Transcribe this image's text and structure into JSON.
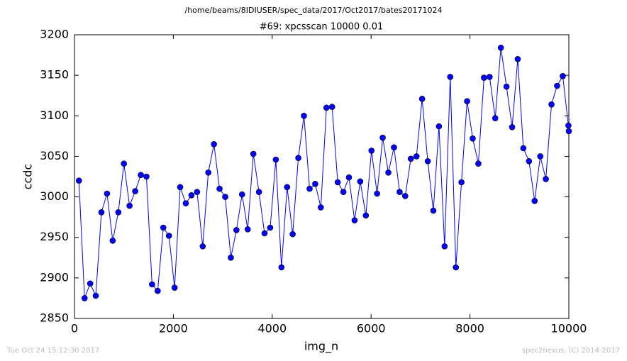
{
  "chart_data": {
    "type": "line",
    "suptitle": "/home/beams/8IDIUSER/spec_data/2017/Oct2017/bates20171024",
    "title": "#69: xpcsscan 10000 0.01",
    "xlabel": "img_n",
    "ylabel": "ccdc",
    "annotations": [
      "Tue Oct 24 15:12:30 2017",
      "spec2nexus, (C) 2014-2017"
    ],
    "color": "#0000ff",
    "xlim": [
      0,
      10000
    ],
    "xticks": [
      0,
      2000,
      4000,
      6000,
      8000,
      10000
    ],
    "ylim": [
      2850,
      3200
    ],
    "yticks": [
      2850,
      2900,
      2950,
      3000,
      3050,
      3100,
      3150,
      3200
    ],
    "grid": false,
    "x": [
      90,
      204,
      318,
      431,
      545,
      659,
      773,
      887,
      1000,
      1114,
      1228,
      1342,
      1456,
      1569,
      1683,
      1797,
      1911,
      2025,
      2138,
      2252,
      2366,
      2480,
      2594,
      2707,
      2821,
      2935,
      3049,
      3163,
      3276,
      3390,
      3504,
      3618,
      3732,
      3845,
      3959,
      4073,
      4187,
      4301,
      4414,
      4528,
      4642,
      4756,
      4870,
      4983,
      5097,
      5211,
      5325,
      5439,
      5552,
      5666,
      5780,
      5894,
      6008,
      6121,
      6235,
      6349,
      6463,
      6577,
      6690,
      6804,
      6918,
      7032,
      7146,
      7259,
      7373,
      7487,
      7601,
      7715,
      7828,
      7942,
      8056,
      8170,
      8284,
      8397,
      8511,
      8625,
      8739,
      8853,
      8966,
      9080,
      9194,
      9308,
      9422,
      9535,
      9649,
      9763,
      9877,
      9991,
      10000
    ],
    "values": [
      3020,
      2875,
      2893,
      2878,
      2981,
      3004,
      2946,
      2981,
      3041,
      2989,
      3007,
      3027,
      3025,
      2892,
      2884,
      2962,
      2952,
      2888,
      3012,
      2992,
      3002,
      3006,
      2939,
      3030,
      3065,
      3010,
      3000,
      2925,
      2959,
      3003,
      2960,
      3053,
      3006,
      2955,
      2962,
      3046,
      2913,
      3012,
      2954,
      3048,
      3100,
      3010,
      3016,
      2987,
      3110,
      3111,
      3018,
      3006,
      3024,
      2971,
      3019,
      2977,
      3057,
      3004,
      3073,
      3030,
      3061,
      3006,
      3001,
      3047,
      3050,
      3121,
      3044,
      2983,
      3087,
      2939,
      3148,
      2913,
      3018,
      3118,
      3072,
      3041,
      3147,
      3148,
      3097,
      3184,
      3136,
      3086,
      3170,
      3060,
      3044,
      2995,
      3050,
      3022,
      3114,
      3137,
      3149,
      3088,
      3081
    ]
  }
}
